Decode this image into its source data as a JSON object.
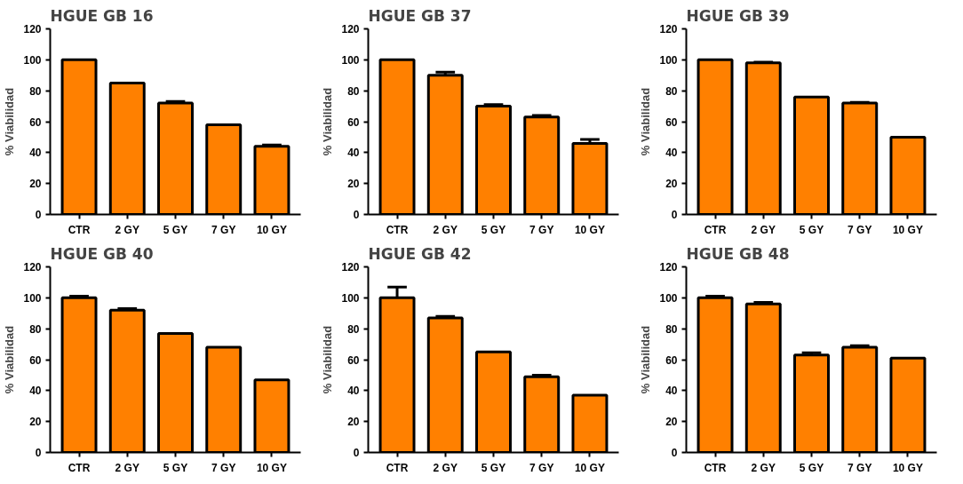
{
  "chart_data": [
    {
      "type": "bar",
      "title": "HGUE GB 16",
      "ylabel": "% Viabilidad",
      "categories": [
        "CTR",
        "2 GY",
        "5 GY",
        "7 GY",
        "10 GY"
      ],
      "values": [
        100,
        85,
        72,
        58,
        44
      ],
      "errors": [
        null,
        null,
        [
          72,
          73
        ],
        null,
        [
          44,
          45
        ]
      ],
      "color": "#ff8000",
      "ylim": [
        0,
        120
      ],
      "yticks": [
        0,
        20,
        40,
        60,
        80,
        100,
        120
      ]
    },
    {
      "type": "bar",
      "title": "HGUE GB 37",
      "ylabel": "% Viabilidad",
      "categories": [
        "CTR",
        "2 GY",
        "5 GY",
        "7 GY",
        "10 GY"
      ],
      "values": [
        100,
        90,
        70,
        63,
        46
      ],
      "errors": [
        null,
        [
          90,
          92
        ],
        [
          70,
          71
        ],
        [
          63,
          64
        ],
        [
          46,
          48.5
        ]
      ],
      "color": "#ff8000",
      "ylim": [
        0,
        120
      ],
      "yticks": [
        0,
        20,
        40,
        60,
        80,
        100,
        120
      ]
    },
    {
      "type": "bar",
      "title": "HGUE GB 39",
      "ylabel": "% Viabilidad",
      "categories": [
        "CTR",
        "2 GY",
        "5 GY",
        "7 GY",
        "10 GY"
      ],
      "values": [
        100,
        98,
        76,
        72,
        50
      ],
      "errors": [
        null,
        [
          98,
          98.5
        ],
        null,
        [
          72,
          72.5
        ],
        null
      ],
      "color": "#ff8000",
      "ylim": [
        0,
        120
      ],
      "yticks": [
        0,
        20,
        40,
        60,
        80,
        100,
        120
      ]
    },
    {
      "type": "bar",
      "title": "HGUE GB 40",
      "ylabel": "% Viabilidad",
      "categories": [
        "CTR",
        "2 GY",
        "5 GY",
        "7 GY",
        "10 GY"
      ],
      "values": [
        100,
        92,
        77,
        68,
        47
      ],
      "errors": [
        [
          100,
          101
        ],
        [
          92,
          93
        ],
        null,
        null,
        null
      ],
      "color": "#ff8000",
      "ylim": [
        0,
        120
      ],
      "yticks": [
        0,
        20,
        40,
        60,
        80,
        100,
        120
      ]
    },
    {
      "type": "bar",
      "title": "HGUE GB 42",
      "ylabel": "% Viabilidad",
      "categories": [
        "CTR",
        "2 GY",
        "5 GY",
        "7 GY",
        "10 GY"
      ],
      "values": [
        100,
        87,
        65,
        49,
        37
      ],
      "errors": [
        [
          100,
          107
        ],
        [
          87,
          88
        ],
        null,
        [
          49,
          50
        ],
        null
      ],
      "color": "#ff8000",
      "ylim": [
        0,
        120
      ],
      "yticks": [
        0,
        20,
        40,
        60,
        80,
        100,
        120
      ]
    },
    {
      "type": "bar",
      "title": "HGUE GB 48",
      "ylabel": "% Viabilidad",
      "categories": [
        "CTR",
        "2 GY",
        "5 GY",
        "7 GY",
        "10 GY"
      ],
      "values": [
        100,
        96,
        63,
        68,
        61
      ],
      "errors": [
        [
          100,
          101
        ],
        [
          96,
          97
        ],
        [
          63,
          64.5
        ],
        [
          68,
          69
        ],
        null
      ],
      "color": "#ff8000",
      "ylim": [
        0,
        120
      ],
      "yticks": [
        0,
        20,
        40,
        60,
        80,
        100,
        120
      ]
    }
  ]
}
